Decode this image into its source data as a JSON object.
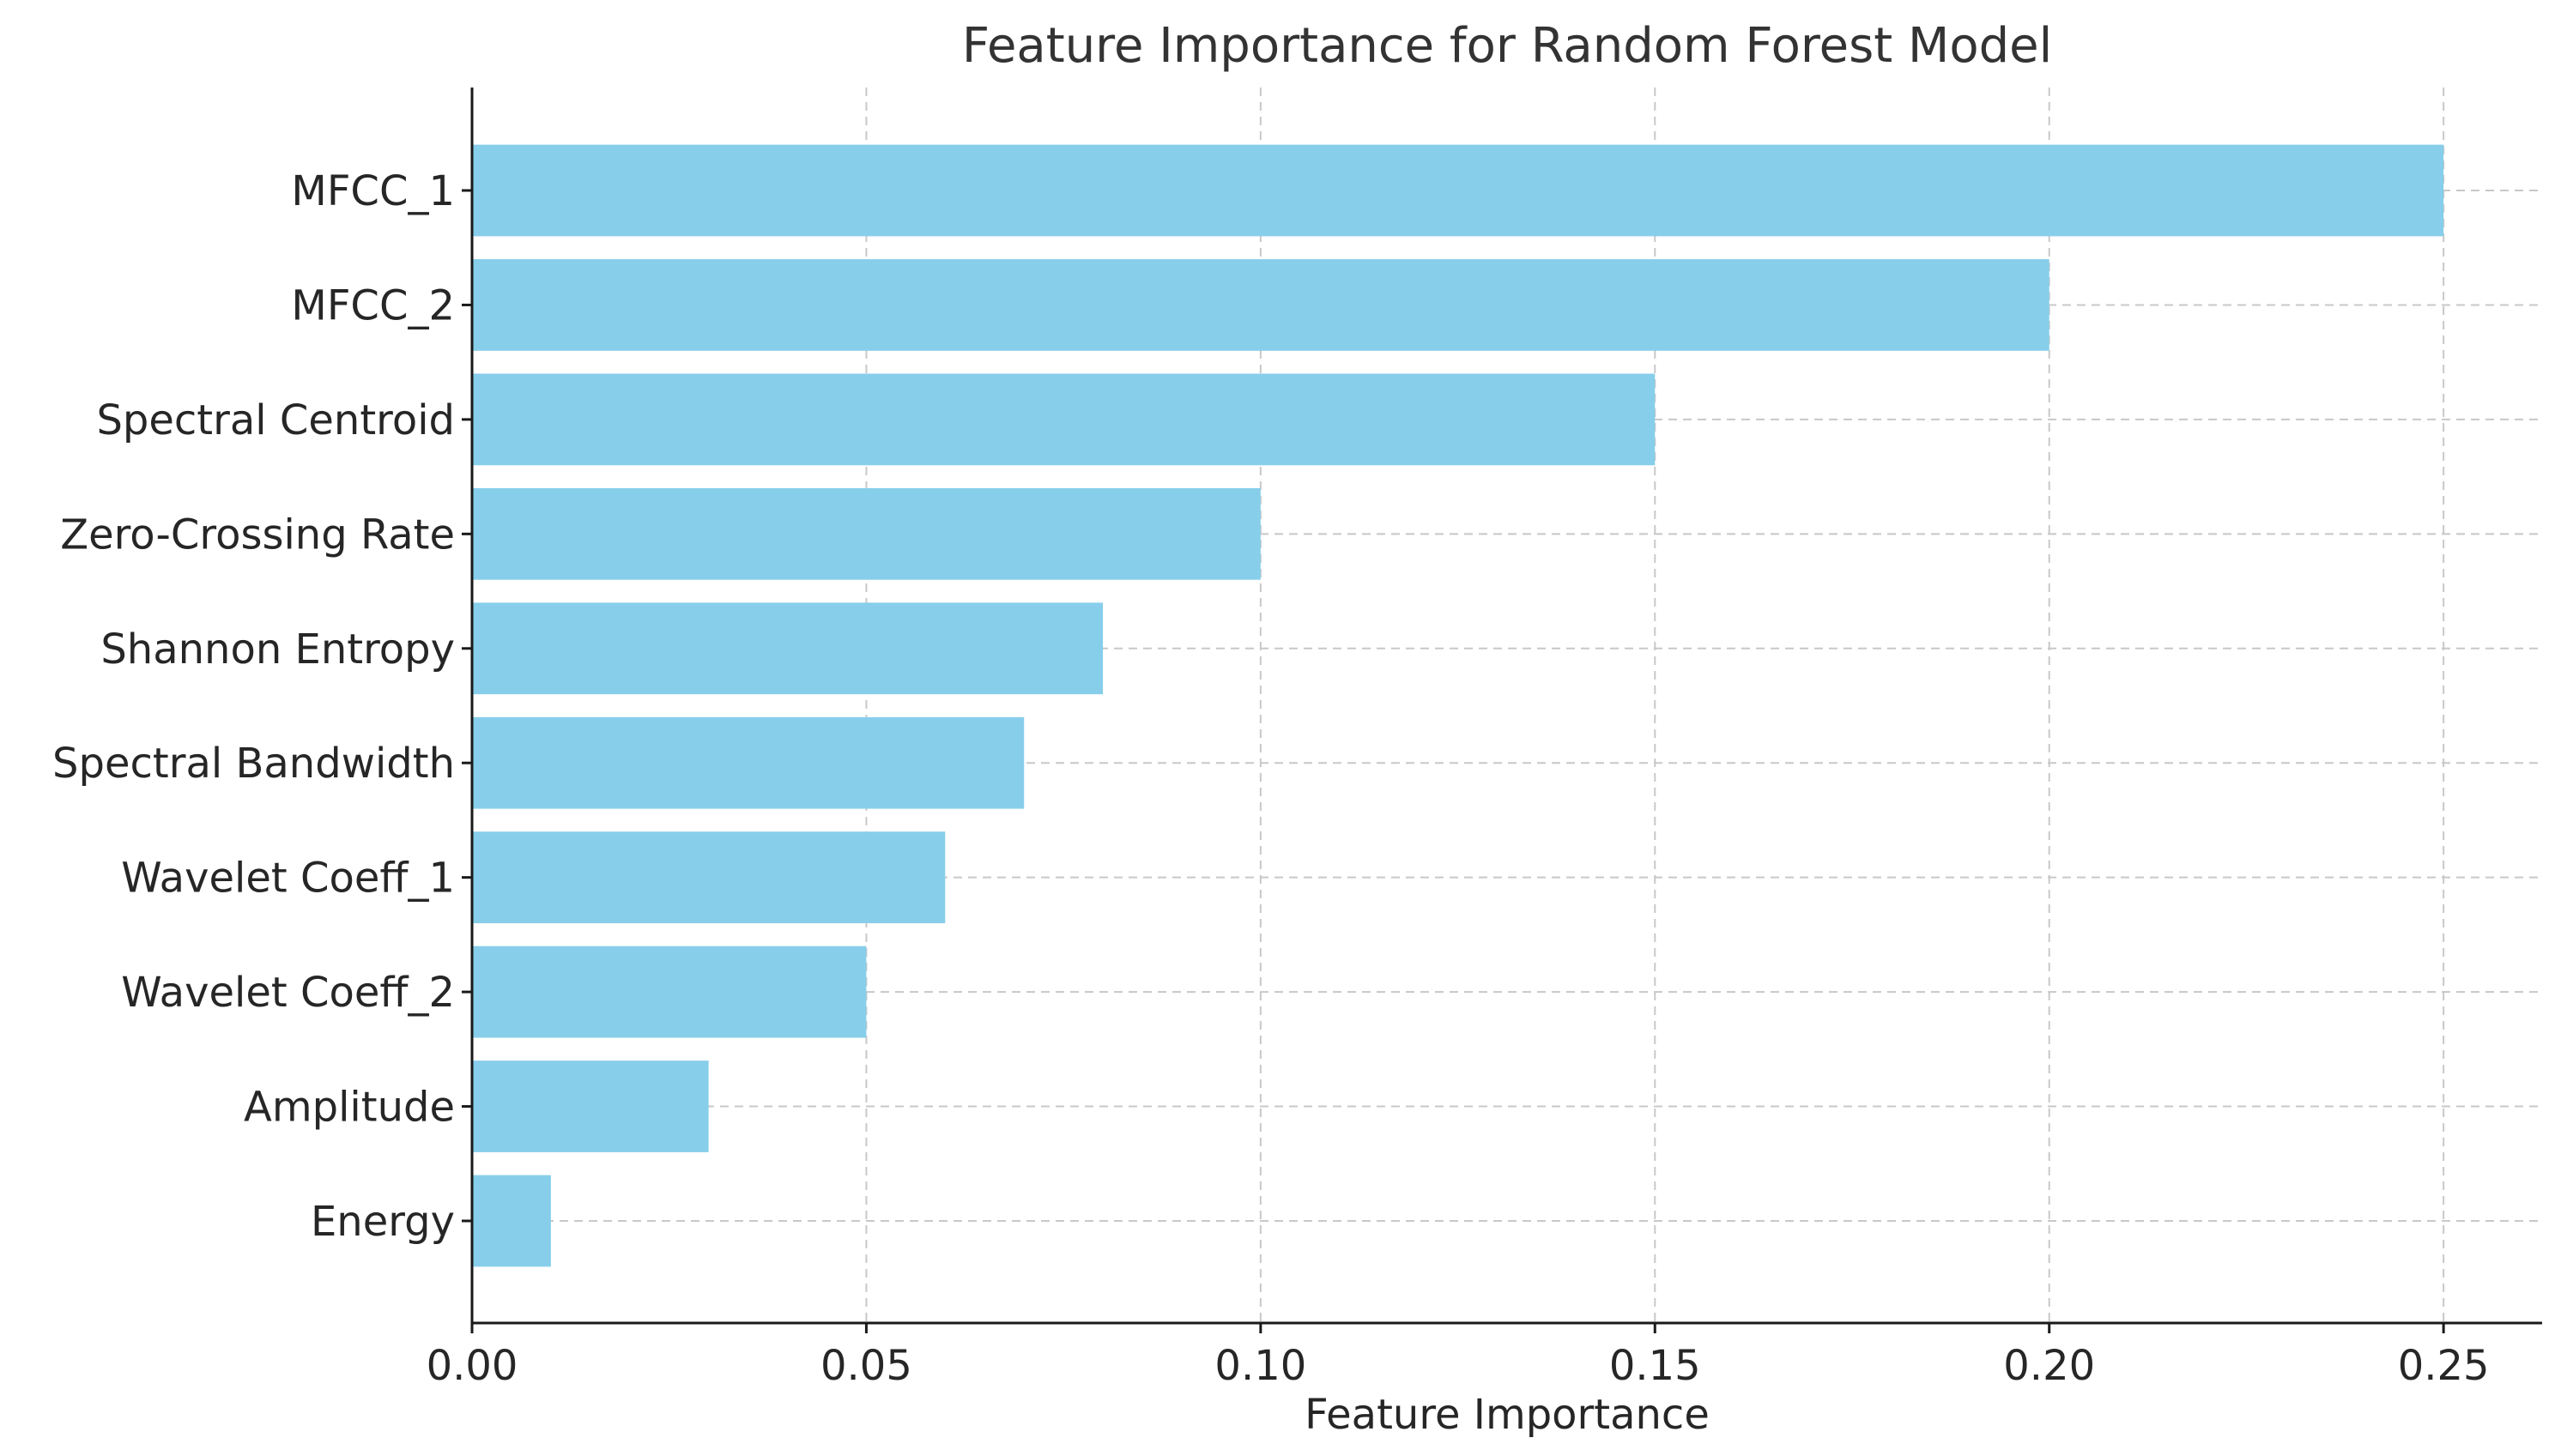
{
  "chart_data": {
    "type": "bar",
    "orientation": "horizontal",
    "title": "Feature Importance for Random Forest Model",
    "xlabel": "Feature Importance",
    "ylabel": "",
    "categories": [
      "MFCC_1",
      "MFCC_2",
      "Spectral Centroid",
      "Zero-Crossing Rate",
      "Shannon Entropy",
      "Spectral Bandwidth",
      "Wavelet Coeff_1",
      "Wavelet Coeff_2",
      "Amplitude",
      "Energy"
    ],
    "values": [
      0.25,
      0.2,
      0.15,
      0.1,
      0.08,
      0.07,
      0.06,
      0.05,
      0.03,
      0.01
    ],
    "xlim": [
      0,
      0.2625
    ],
    "xticks": [
      0.0,
      0.05,
      0.1,
      0.15,
      0.2,
      0.25
    ],
    "xtick_labels": [
      "0.00",
      "0.05",
      "0.10",
      "0.15",
      "0.20",
      "0.25"
    ],
    "grid": true,
    "bar_color": "#87ceeb"
  }
}
